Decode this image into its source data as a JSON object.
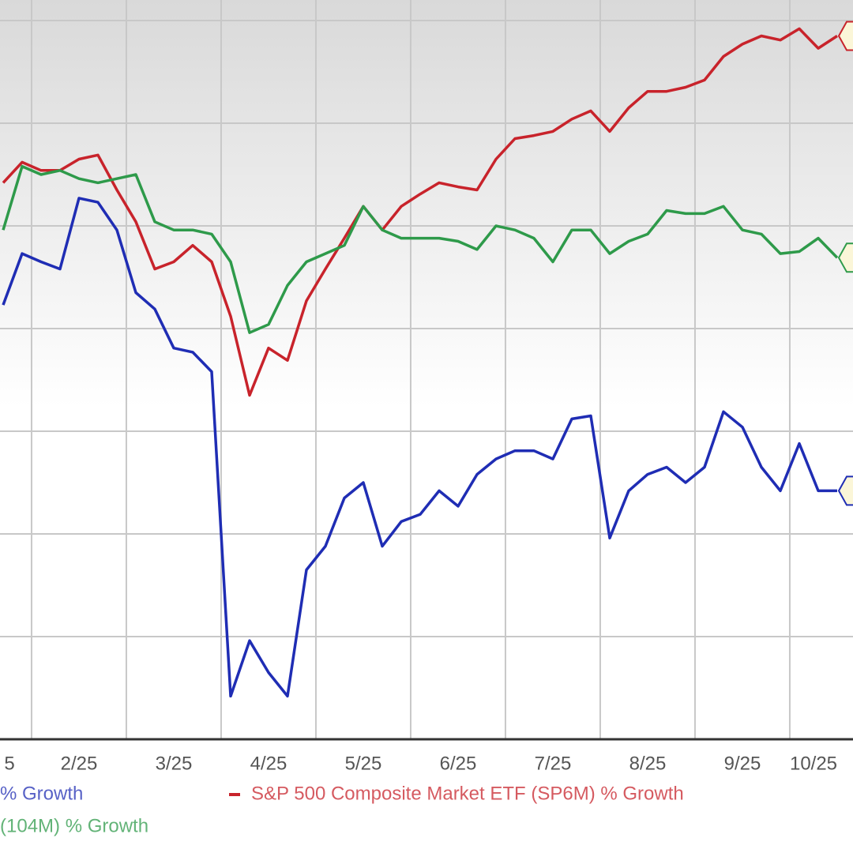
{
  "chart_data": {
    "type": "line",
    "x": [
      1.7,
      1.9,
      2.1,
      2.3,
      2.5,
      2.7,
      2.9,
      3.1,
      3.3,
      3.5,
      3.7,
      3.9,
      4.1,
      4.3,
      4.5,
      4.7,
      4.9,
      5.1,
      5.3,
      5.5,
      5.7,
      5.9,
      6.1,
      6.3,
      6.5,
      6.7,
      6.9,
      7.1,
      7.3,
      7.5,
      7.7,
      7.9,
      8.1,
      8.3,
      8.5,
      8.7,
      8.9,
      9.1,
      9.3,
      9.5,
      9.7,
      9.9,
      10.1,
      10.3,
      10.5
    ],
    "series": [
      {
        "name": "% Growth",
        "color": "#1f2db4",
        "values": [
          42.3,
          47.3,
          46.5,
          45.8,
          52.7,
          52.3,
          49.6,
          43.5,
          41.9,
          38.1,
          37.7,
          35.8,
          4.2,
          9.6,
          6.5,
          4.2,
          16.5,
          18.8,
          23.5,
          25.0,
          18.8,
          21.2,
          21.9,
          24.2,
          22.7,
          25.8,
          27.3,
          28.1,
          28.1,
          27.3,
          31.2,
          31.5,
          19.6,
          24.2,
          25.8,
          26.5,
          25.0,
          26.5,
          31.9,
          30.4,
          26.5,
          24.2,
          28.8,
          24.2,
          24.2
        ]
      },
      {
        "name": "S&P 500 Composite Market ETF (SP6M) % Growth",
        "color": "#c8232b",
        "values": [
          54.2,
          56.2,
          55.4,
          55.4,
          56.5,
          56.9,
          53.5,
          50.4,
          45.8,
          46.5,
          48.1,
          46.5,
          41.2,
          33.5,
          38.1,
          36.9,
          42.7,
          45.8,
          48.8,
          51.9,
          49.6,
          51.9,
          53.1,
          54.2,
          53.8,
          53.5,
          56.5,
          58.5,
          58.8,
          59.2,
          60.4,
          61.2,
          59.2,
          61.5,
          63.1,
          63.1,
          63.5,
          64.2,
          66.5,
          67.7,
          68.5,
          68.1,
          69.2,
          67.3,
          68.5
        ]
      },
      {
        "name": "(104M) % Growth",
        "color": "#2e9a4a",
        "values": [
          49.6,
          55.8,
          55.0,
          55.4,
          54.6,
          54.2,
          54.6,
          55.0,
          50.4,
          49.6,
          49.6,
          49.2,
          46.5,
          39.6,
          40.4,
          44.2,
          46.5,
          47.3,
          48.1,
          51.9,
          49.6,
          48.8,
          48.8,
          48.8,
          48.5,
          47.7,
          50.0,
          49.6,
          48.8,
          46.5,
          49.6,
          49.6,
          47.3,
          48.5,
          49.2,
          51.5,
          51.2,
          51.2,
          51.9,
          49.6,
          49.2,
          47.3,
          47.5,
          48.8,
          46.9
        ]
      }
    ],
    "xlim": [
      1.667,
      10.667
    ],
    "xticks": [
      {
        "value": 1.5,
        "label": "5"
      },
      {
        "value": 2.5,
        "label": "2/25"
      },
      {
        "value": 3.5,
        "label": "3/25"
      },
      {
        "value": 4.5,
        "label": "4/25"
      },
      {
        "value": 5.5,
        "label": "5/25"
      },
      {
        "value": 6.5,
        "label": "6/25"
      },
      {
        "value": 7.5,
        "label": "7/25"
      },
      {
        "value": 8.5,
        "label": "8/25"
      },
      {
        "value": 9.5,
        "label": "9/25"
      },
      {
        "value": 10.5,
        "label": "10/25"
      }
    ],
    "ylim": [
      0,
      72
    ],
    "yticks": [
      10,
      20,
      30,
      40,
      50,
      60,
      70
    ],
    "grid": true
  }
}
